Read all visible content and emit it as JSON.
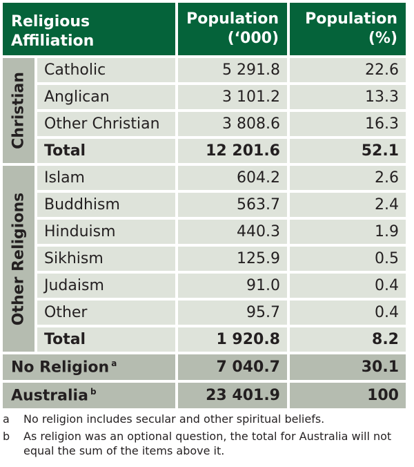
{
  "table": {
    "header": {
      "affiliation": "Religious Affiliation",
      "population_line1": "Population",
      "population_line2": "(‘000)",
      "percent_line1": "Population",
      "percent_line2": "(%)"
    },
    "christian": {
      "group_label": "Christian",
      "rows": [
        {
          "name": "Catholic",
          "population": "5 291.8",
          "percent": "22.6"
        },
        {
          "name": "Anglican",
          "population": "3 101.2",
          "percent": "13.3"
        },
        {
          "name": "Other Christian",
          "population": "3 808.6",
          "percent": "16.3"
        }
      ],
      "total": {
        "name": "Total",
        "population": "12 201.6",
        "percent": "52.1"
      }
    },
    "other": {
      "group_label": "Other Religions",
      "rows": [
        {
          "name": "Islam",
          "population": "604.2",
          "percent": "2.6"
        },
        {
          "name": "Buddhism",
          "population": "563.7",
          "percent": "2.4"
        },
        {
          "name": "Hinduism",
          "population": "440.3",
          "percent": "1.9"
        },
        {
          "name": "Sikhism",
          "population": "125.9",
          "percent": "0.5"
        },
        {
          "name": "Judaism",
          "population": "91.0",
          "percent": "0.4"
        },
        {
          "name": "Other",
          "population": "95.7",
          "percent": "0.4"
        }
      ],
      "total": {
        "name": "Total",
        "population": "1 920.8",
        "percent": "8.2"
      }
    },
    "no_religion": {
      "name": "No Religion",
      "footnote": "a",
      "population": "7 040.7",
      "percent": "30.1"
    },
    "australia": {
      "name": "Australia",
      "footnote": "b",
      "population": "23 401.9",
      "percent": "100"
    }
  },
  "notes": [
    {
      "mark": "a",
      "text": "No religion includes secular and other spiritual beliefs."
    },
    {
      "mark": "b",
      "text": "As religion was an optional question, the total for Australia will not equal the sum of the items above it."
    }
  ],
  "colors": {
    "header_bg": "#05633a",
    "header_text": "#ffffff",
    "cell_bg": "#dee3da",
    "group_bg": "#b5bcb0",
    "text": "#231f20"
  }
}
